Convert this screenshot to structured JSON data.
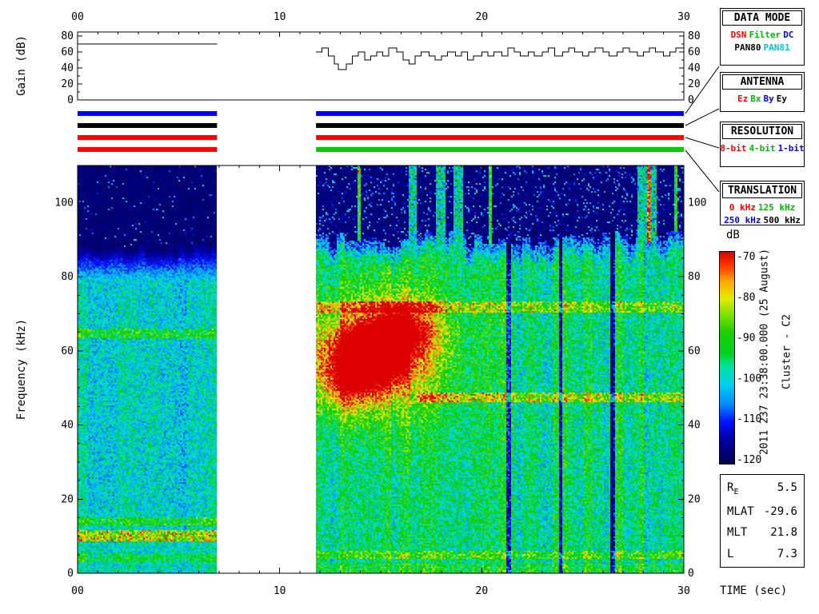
{
  "labels": {
    "gain_axis": "Gain (dB)",
    "frequency_axis": "Frequency (kHz)",
    "time_axis": "TIME (sec)",
    "colorbar_unit": "dB"
  },
  "side_text": {
    "datetime": "2011 237 23:38:00.000 (25 August)",
    "spacecraft": "Cluster - C2"
  },
  "panels": {
    "data_mode": {
      "title": "DATA MODE",
      "rows": [
        [
          {
            "text": "DSN",
            "color": "#ff0000"
          },
          {
            "text": "Filter",
            "color": "#00bb00"
          },
          {
            "text": "DC",
            "color": "#0000ff"
          }
        ],
        [
          {
            "text": "PAN80",
            "color": "#000000"
          },
          {
            "text": "PAN81",
            "color": "#00cccc"
          }
        ]
      ]
    },
    "antenna": {
      "title": "ANTENNA",
      "rows": [
        [
          {
            "text": "Ez",
            "color": "#ff0000"
          },
          {
            "text": "Bx",
            "color": "#00bb00"
          },
          {
            "text": "By",
            "color": "#0000ff"
          },
          {
            "text": "Ey",
            "color": "#000000"
          }
        ]
      ]
    },
    "resolution": {
      "title": "RESOLUTION",
      "rows": [
        [
          {
            "text": "8-bit",
            "color": "#ff0000"
          },
          {
            "text": "4-bit",
            "color": "#00bb00"
          },
          {
            "text": "1-bit",
            "color": "#0000ff"
          }
        ]
      ]
    },
    "translation": {
      "title": "TRANSLATION",
      "rows": [
        [
          {
            "text": "0 kHz",
            "color": "#ff0000"
          },
          {
            "text": "125 kHz",
            "color": "#00bb00"
          }
        ],
        [
          {
            "text": "250 kHz",
            "color": "#0000ff"
          },
          {
            "text": "500 kHz",
            "color": "#000000"
          }
        ]
      ]
    }
  },
  "ephemeris": {
    "rows": [
      {
        "label": "R",
        "sub": "E",
        "value": "5.5"
      },
      {
        "label": "MLAT",
        "sub": "",
        "value": "-29.6"
      },
      {
        "label": "MLT",
        "sub": "",
        "value": "21.8"
      },
      {
        "label": "L",
        "sub": "",
        "value": "7.3"
      }
    ]
  },
  "status_bars": {
    "rows": [
      {
        "name": "data-mode",
        "segments": [
          {
            "t0": 0,
            "t1": 6.9,
            "color": "#0000ff"
          },
          {
            "t0": 11.8,
            "t1": 30,
            "color": "#0000ff"
          }
        ]
      },
      {
        "name": "antenna",
        "segments": [
          {
            "t0": 0,
            "t1": 6.9,
            "color": "#000000"
          },
          {
            "t0": 11.8,
            "t1": 30,
            "color": "#000000"
          }
        ]
      },
      {
        "name": "resolution",
        "segments": [
          {
            "t0": 0,
            "t1": 6.9,
            "color": "#ff0000"
          },
          {
            "t0": 11.8,
            "t1": 30,
            "color": "#ff0000"
          }
        ]
      },
      {
        "name": "translation",
        "segments": [
          {
            "t0": 0,
            "t1": 6.9,
            "color": "#ff0000"
          },
          {
            "t0": 11.8,
            "t1": 30,
            "color": "#00cc00"
          }
        ]
      }
    ]
  },
  "chart_data": [
    {
      "id": "gain",
      "type": "line",
      "ylabel": "Gain (dB)",
      "xlim": [
        0,
        30
      ],
      "ylim": [
        0,
        80
      ],
      "yticks": [
        0,
        20,
        40,
        60,
        80
      ],
      "xticks": [
        0,
        10,
        20,
        30
      ],
      "xtick_labels": [
        "00",
        "10",
        "20",
        "30"
      ],
      "step": true,
      "segments": [
        {
          "points": [
            [
              0,
              70
            ],
            [
              6.9,
              70
            ]
          ]
        },
        {
          "points": [
            [
              11.8,
              60
            ],
            [
              12.1,
              65
            ],
            [
              12.4,
              55
            ],
            [
              12.7,
              45
            ],
            [
              12.9,
              38
            ],
            [
              13.3,
              45
            ],
            [
              13.6,
              55
            ],
            [
              13.9,
              60
            ],
            [
              14.2,
              50
            ],
            [
              14.5,
              55
            ],
            [
              14.8,
              60
            ],
            [
              15.1,
              55
            ],
            [
              15.4,
              65
            ],
            [
              15.8,
              60
            ],
            [
              16.1,
              50
            ],
            [
              16.4,
              45
            ],
            [
              16.7,
              55
            ],
            [
              17.0,
              60
            ],
            [
              17.4,
              55
            ],
            [
              17.7,
              50
            ],
            [
              18.0,
              55
            ],
            [
              18.3,
              60
            ],
            [
              18.7,
              55
            ],
            [
              19.0,
              60
            ],
            [
              19.3,
              50
            ],
            [
              19.6,
              55
            ],
            [
              20.0,
              60
            ],
            [
              20.3,
              55
            ],
            [
              20.6,
              60
            ],
            [
              21.0,
              55
            ],
            [
              21.3,
              65
            ],
            [
              21.6,
              60
            ],
            [
              21.9,
              55
            ],
            [
              22.3,
              60
            ],
            [
              22.6,
              55
            ],
            [
              23.0,
              60
            ],
            [
              23.3,
              65
            ],
            [
              23.6,
              55
            ],
            [
              24.0,
              60
            ],
            [
              24.3,
              65
            ],
            [
              24.6,
              60
            ],
            [
              25.0,
              55
            ],
            [
              25.3,
              60
            ],
            [
              25.6,
              65
            ],
            [
              26.0,
              60
            ],
            [
              26.3,
              55
            ],
            [
              26.7,
              60
            ],
            [
              27.0,
              65
            ],
            [
              27.3,
              60
            ],
            [
              27.7,
              55
            ],
            [
              28.0,
              60
            ],
            [
              28.3,
              65
            ],
            [
              28.6,
              60
            ],
            [
              29.0,
              55
            ],
            [
              29.3,
              60
            ],
            [
              29.6,
              65
            ],
            [
              30.0,
              65
            ]
          ]
        }
      ]
    },
    {
      "id": "spectrogram",
      "type": "heatmap",
      "xlabel": "TIME (sec)",
      "ylabel": "Frequency (kHz)",
      "xlim": [
        0,
        30
      ],
      "ylim": [
        0,
        110
      ],
      "xticks": [
        0,
        10,
        20,
        30
      ],
      "xtick_labels": [
        "00",
        "10",
        "20",
        "30"
      ],
      "yticks": [
        0,
        20,
        40,
        60,
        80,
        100
      ],
      "value_unit": "dB",
      "value_range": [
        -120,
        -70
      ],
      "colorbar": {
        "unit": "dB",
        "ticks": [
          -70,
          -80,
          -90,
          -100,
          -110,
          -120
        ]
      },
      "data_gaps": [
        [
          6.9,
          11.8
        ]
      ],
      "colormap": [
        [
          0.0,
          0,
          0,
          80
        ],
        [
          0.12,
          0,
          0,
          170
        ],
        [
          0.2,
          0,
          20,
          255
        ],
        [
          0.28,
          0,
          140,
          255
        ],
        [
          0.38,
          0,
          210,
          235
        ],
        [
          0.46,
          0,
          225,
          160
        ],
        [
          0.52,
          0,
          210,
          30
        ],
        [
          0.62,
          30,
          205,
          0
        ],
        [
          0.7,
          120,
          225,
          0
        ],
        [
          0.78,
          230,
          235,
          0
        ],
        [
          0.86,
          255,
          170,
          0
        ],
        [
          0.93,
          255,
          60,
          0
        ],
        [
          1.0,
          220,
          0,
          0
        ]
      ],
      "segments": [
        {
          "t0": 0,
          "t1": 6.9,
          "base_db": -106.5,
          "noise_db": 13,
          "dark_above_khz": 87,
          "bands": [
            {
              "f0": 8.5,
              "f1": 11.5,
              "boost": 16
            },
            {
              "f0": 13,
              "f1": 15.2,
              "boost": 8
            },
            {
              "f0": 63.5,
              "f1": 66,
              "boost": 8
            },
            {
              "f0": 3,
              "f1": 5,
              "boost": 5
            }
          ]
        },
        {
          "t0": 11.8,
          "t1": 30,
          "base_db": -103.5,
          "noise_db": 15,
          "dark_above_khz": 90.5,
          "bands": [
            {
              "f0": 70.5,
              "f1": 73.2,
              "boost": 10
            },
            {
              "f0": 46,
              "f1": 48.6,
              "boost": 12,
              "after_t": 16.8
            },
            {
              "f0": 4,
              "f1": 6,
              "boost": 7
            }
          ],
          "blobs": [
            {
              "t": 14.3,
              "f": 58,
              "st": 1.5,
              "sf": 7,
              "boost": 38
            },
            {
              "t": 16.2,
              "f": 66,
              "st": 1.1,
              "sf": 5,
              "boost": 20
            },
            {
              "t": 15.2,
              "f": 60,
              "st": 2.8,
              "sf": 14,
              "boost": 12
            },
            {
              "t": 13.2,
              "f": 50,
              "st": 0.7,
              "sf": 5,
              "boost": 10
            }
          ],
          "dark_columns": [
            21.35,
            23.9,
            26.45
          ]
        }
      ]
    }
  ]
}
